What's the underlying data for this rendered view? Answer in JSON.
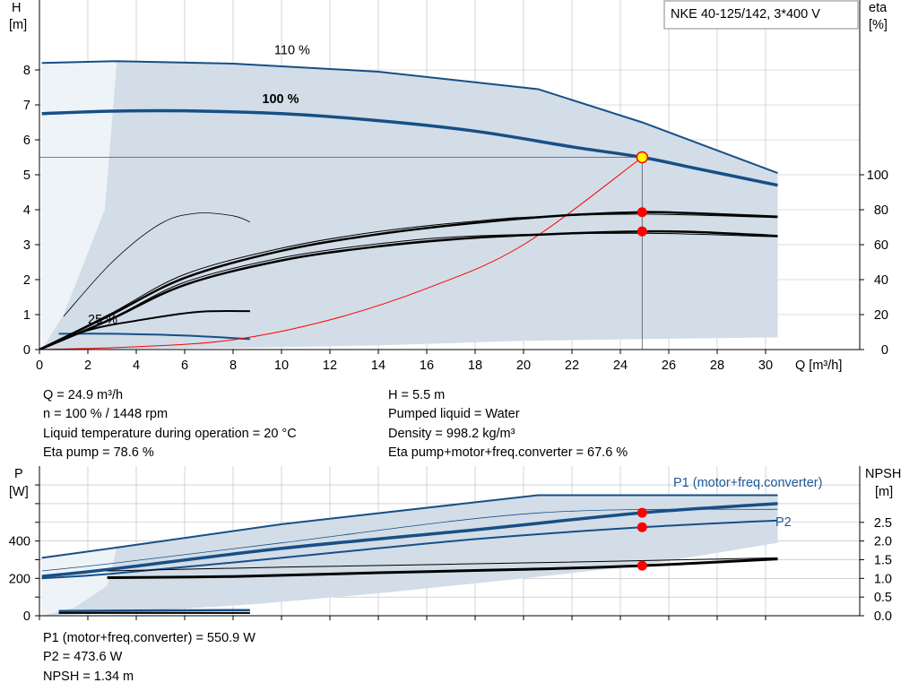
{
  "colors": {
    "curve_blue": "#174f86",
    "area_fill": "#d2dde8",
    "grid": "#b9b9b9",
    "operating_point": "#ff0000",
    "duty_marker": "#ffff00",
    "system_curve": "#ff0000"
  },
  "legend_box": {
    "label": "NKE 40-125/142, 3*400 V"
  },
  "chart_data": [
    {
      "type": "line",
      "name": "head-eta",
      "xlabel": "Q [m³/h]",
      "y_left": {
        "label_top": "H",
        "label_unit": "[m]",
        "range": [
          0,
          9
        ],
        "ticks": [
          0,
          1,
          2,
          3,
          4,
          5,
          6,
          7,
          8
        ]
      },
      "y_right": {
        "label_top": "eta",
        "label_unit": "[%]",
        "range": [
          0,
          180
        ],
        "ticks": [
          0,
          20,
          40,
          60,
          80,
          100
        ]
      },
      "x_range": [
        0,
        33
      ],
      "x_ticks": [
        0,
        2,
        4,
        6,
        8,
        10,
        12,
        14,
        16,
        18,
        20,
        22,
        24,
        26,
        28,
        30
      ],
      "grid": true,
      "annotations": [
        {
          "text": "110 %",
          "x": 9.7,
          "y": 8.45
        },
        {
          "text": "100 %",
          "x": 9.2,
          "y": 7.05
        },
        {
          "text": "25 %",
          "x": 2.0,
          "y": 0.75
        }
      ],
      "operating_point": {
        "q": 24.9,
        "h": 5.5,
        "eta_pump": 78.6,
        "eta_total": 67.6
      },
      "series": [
        {
          "role": "envelope-110",
          "axis": "H",
          "points": [
            [
              0.1,
              8.2
            ],
            [
              3.2,
              8.25
            ],
            [
              8,
              8.18
            ],
            [
              14,
              7.95
            ],
            [
              20.6,
              7.45
            ],
            [
              24.9,
              6.5
            ],
            [
              30.5,
              5.05
            ]
          ]
        },
        {
          "role": "head-100",
          "axis": "H",
          "points": [
            [
              0.1,
              6.75
            ],
            [
              3,
              6.82
            ],
            [
              6,
              6.83
            ],
            [
              10,
              6.75
            ],
            [
              14,
              6.55
            ],
            [
              18,
              6.25
            ],
            [
              22,
              5.8
            ],
            [
              24.9,
              5.5
            ],
            [
              27,
              5.2
            ],
            [
              30.5,
              4.7
            ]
          ]
        },
        {
          "role": "head-25",
          "axis": "H",
          "points": [
            [
              0.8,
              0.45
            ],
            [
              3,
              0.45
            ],
            [
              6,
              0.4
            ],
            [
              8.7,
              0.3
            ]
          ]
        },
        {
          "role": "system-curve",
          "axis": "H",
          "points": [
            [
              0,
              0
            ],
            [
              4,
              0.08
            ],
            [
              8,
              0.28
            ],
            [
              12,
              0.85
            ],
            [
              16,
              1.75
            ],
            [
              20,
              3.0
            ],
            [
              24.9,
              5.5
            ]
          ]
        },
        {
          "role": "eta-pump",
          "axis": "eta",
          "points": [
            [
              0,
              0
            ],
            [
              2.9,
              19.5
            ],
            [
              6,
              41
            ],
            [
              10,
              56.5
            ],
            [
              14,
              66
            ],
            [
              18,
              72.5
            ],
            [
              22,
              77
            ],
            [
              24.9,
              78.6
            ],
            [
              27,
              78
            ],
            [
              30.5,
              76
            ]
          ]
        },
        {
          "role": "eta-pump-thin",
          "axis": "eta",
          "points": [
            [
              0,
              0
            ],
            [
              3,
              21
            ],
            [
              6,
              43
            ],
            [
              10,
              58
            ],
            [
              14,
              67.5
            ],
            [
              18,
              73.5
            ],
            [
              20.6,
              76
            ],
            [
              24.9,
              77.5
            ],
            [
              30.5,
              75.5
            ]
          ]
        },
        {
          "role": "eta-total",
          "axis": "eta",
          "points": [
            [
              0,
              0
            ],
            [
              2.9,
              17
            ],
            [
              6,
              37
            ],
            [
              10,
              51
            ],
            [
              14,
              59
            ],
            [
              18,
              64
            ],
            [
              22,
              66.5
            ],
            [
              24.9,
              67.6
            ],
            [
              27,
              67.3
            ],
            [
              30.5,
              65
            ]
          ]
        },
        {
          "role": "eta-total-thin",
          "axis": "eta",
          "points": [
            [
              0,
              0
            ],
            [
              3,
              18
            ],
            [
              6,
              38.5
            ],
            [
              10,
              52.5
            ],
            [
              14,
              60.5
            ],
            [
              18,
              65
            ],
            [
              24.9,
              66.5
            ],
            [
              30.5,
              64.5
            ]
          ]
        },
        {
          "role": "eta-pump-25",
          "axis": "eta",
          "points": [
            [
              0,
              0
            ],
            [
              2,
              11
            ],
            [
              4,
              16.5
            ],
            [
              6.5,
              21.5
            ],
            [
              8.7,
              22
            ]
          ]
        },
        {
          "role": "eta-aux-thin",
          "axis": "eta",
          "points": [
            [
              1,
              19
            ],
            [
              3,
              50
            ],
            [
              5,
              72
            ],
            [
              6.5,
              78
            ],
            [
              8,
              76.5
            ],
            [
              8.7,
              73
            ]
          ]
        }
      ],
      "envelope_polygon": [
        [
          0.1,
          8.2
        ],
        [
          3.2,
          8.25
        ],
        [
          8,
          8.18
        ],
        [
          14,
          7.95
        ],
        [
          20.6,
          7.45
        ],
        [
          24.9,
          6.5
        ],
        [
          30.5,
          5.05
        ],
        [
          30.5,
          0.35
        ],
        [
          24.9,
          0.3
        ],
        [
          20,
          0.25
        ],
        [
          14,
          0.12
        ],
        [
          8.7,
          0.05
        ],
        [
          0.1,
          0
        ]
      ]
    },
    {
      "type": "line",
      "name": "power-npsh",
      "y_left": {
        "label_top": "P",
        "label_unit": "[W]",
        "range": [
          0,
          700
        ],
        "ticks": [
          0,
          200,
          400
        ]
      },
      "y_right": {
        "label_top": "NPSH",
        "label_unit": "[m]",
        "range": [
          0,
          3.5
        ],
        "ticks": [
          0.0,
          0.5,
          1.0,
          1.5,
          2.0,
          2.5
        ]
      },
      "x_range": [
        0,
        33
      ],
      "grid": true,
      "labels": [
        {
          "text": "P1 (motor+freq.converter)",
          "x": 27,
          "y": 700
        },
        {
          "text": "P2",
          "x": 30.5,
          "y": 490
        }
      ],
      "series": [
        {
          "role": "P1-envelope",
          "axis": "P",
          "points": [
            [
              0.1,
              310
            ],
            [
              3.2,
              365
            ],
            [
              10,
              490
            ],
            [
              20.6,
              645
            ],
            [
              30.5,
              645
            ]
          ]
        },
        {
          "role": "P1",
          "axis": "P",
          "points": [
            [
              0.1,
              210
            ],
            [
              3,
              250
            ],
            [
              10,
              360
            ],
            [
              18,
              460
            ],
            [
              24.9,
              550.9
            ],
            [
              30.5,
              600
            ]
          ]
        },
        {
          "role": "P1-thin",
          "axis": "P",
          "points": [
            [
              0.1,
              240
            ],
            [
              3,
              280
            ],
            [
              10,
              390
            ],
            [
              20.6,
              550
            ],
            [
              30.5,
              570
            ]
          ]
        },
        {
          "role": "P2",
          "axis": "P",
          "points": [
            [
              0.1,
              200
            ],
            [
              3,
              225
            ],
            [
              10,
              310
            ],
            [
              18,
              410
            ],
            [
              24.9,
              473.6
            ],
            [
              30.5,
              510
            ]
          ]
        },
        {
          "role": "P-25",
          "axis": "P",
          "points": [
            [
              0.8,
              25
            ],
            [
              4,
              28
            ],
            [
              8.7,
              30
            ]
          ]
        },
        {
          "role": "NPSH",
          "axis": "NPSH",
          "points": [
            [
              2.8,
              1.02
            ],
            [
              8,
              1.05
            ],
            [
              14,
              1.15
            ],
            [
              20,
              1.24
            ],
            [
              24.9,
              1.34
            ],
            [
              30.5,
              1.52
            ]
          ]
        },
        {
          "role": "NPSH-thin",
          "axis": "NPSH",
          "points": [
            [
              2.8,
              1.2
            ],
            [
              10,
              1.3
            ],
            [
              20.6,
              1.42
            ],
            [
              30.5,
              1.55
            ]
          ]
        }
      ],
      "envelope_polygon": [
        [
          0.1,
          310
        ],
        [
          3.2,
          365
        ],
        [
          10,
          490
        ],
        [
          20.6,
          645
        ],
        [
          30.5,
          645
        ],
        [
          30.5,
          390
        ],
        [
          24.9,
          270
        ],
        [
          20,
          200
        ],
        [
          14,
          120
        ],
        [
          8.7,
          60
        ],
        [
          3,
          15
        ],
        [
          0.1,
          0
        ]
      ],
      "operating_points": [
        {
          "axis": "P",
          "q": 24.9,
          "value": 550.9
        },
        {
          "axis": "P",
          "q": 24.9,
          "value": 473.6
        },
        {
          "axis": "NPSH",
          "q": 24.9,
          "value": 1.34
        }
      ]
    }
  ],
  "readout_1": {
    "q": "Q = 24.9 m³/h",
    "n": "n = 100 % / 1448 rpm",
    "temp": "Liquid temperature during operation = 20 °C",
    "eta_pump": "Eta pump = 78.6 %",
    "h": "H = 5.5 m",
    "liquid": "Pumped liquid = Water",
    "density": "Density = 998.2 kg/m³",
    "eta_total": "Eta pump+motor+freq.converter = 67.6 %"
  },
  "readout_2": {
    "p1": "P1 (motor+freq.converter) = 550.9 W",
    "p2": "P2 = 473.6 W",
    "npsh": "NPSH = 1.34 m"
  }
}
